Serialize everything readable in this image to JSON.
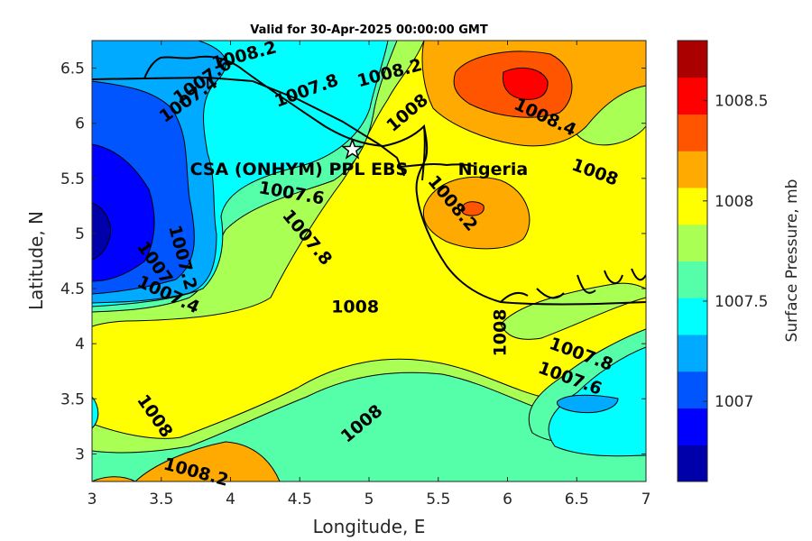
{
  "chart_data": {
    "type": "contour",
    "title": "Valid for 30-Apr-2025 00:00:00 GMT",
    "xlabel": "Longitude, E",
    "ylabel": "Latitude, N",
    "xlim": [
      3,
      7
    ],
    "ylim": [
      2.75,
      6.75
    ],
    "x_ticks": [
      "3",
      "3.5",
      "4",
      "4.5",
      "5",
      "5.5",
      "6",
      "6.5",
      "7"
    ],
    "y_ticks": [
      "3",
      "3.5",
      "4",
      "4.5",
      "5",
      "5.5",
      "6",
      "6.5"
    ],
    "colorbar": {
      "label": "Surface Pressure, mb",
      "range": [
        1006.6,
        1008.8
      ],
      "ticks": [
        "1007",
        "1007.5",
        "1008",
        "1008.5"
      ],
      "colors": [
        "#0000aa",
        "#0000ff",
        "#0055ff",
        "#00aaff",
        "#00ffff",
        "#55ffaa",
        "#aaff55",
        "#ffff00",
        "#ffaa00",
        "#ff5500",
        "#ff0000",
        "#aa0000"
      ]
    },
    "site": {
      "name": "CSA (ONHYM) PPL EBS",
      "lon": 4.88,
      "lat": 5.76
    },
    "country_label": "Nigeria",
    "contour_labels": [
      {
        "text": "1008.2",
        "lon": 4.1,
        "lat": 6.61,
        "angle": 15
      },
      {
        "text": "1007.6",
        "lon": 3.8,
        "lat": 6.38,
        "angle": 35
      },
      {
        "text": "1007.4",
        "lon": 3.7,
        "lat": 6.21,
        "angle": 35
      },
      {
        "text": "1007.8",
        "lon": 4.55,
        "lat": 6.29,
        "angle": 20
      },
      {
        "text": "1008.2",
        "lon": 5.15,
        "lat": 6.45,
        "angle": 15
      },
      {
        "text": "1008",
        "lon": 5.28,
        "lat": 6.09,
        "angle": 40
      },
      {
        "text": "1008.4",
        "lon": 6.27,
        "lat": 6.05,
        "angle": -25
      },
      {
        "text": "1008",
        "lon": 6.63,
        "lat": 5.55,
        "angle": -20
      },
      {
        "text": "1008.2",
        "lon": 5.6,
        "lat": 5.27,
        "angle": -50
      },
      {
        "text": "1007.6",
        "lon": 4.44,
        "lat": 5.36,
        "angle": -10
      },
      {
        "text": "1007.8",
        "lon": 4.55,
        "lat": 4.96,
        "angle": -50
      },
      {
        "text": "1007",
        "lon": 3.45,
        "lat": 4.73,
        "angle": -55
      },
      {
        "text": "1007.2",
        "lon": 3.65,
        "lat": 4.78,
        "angle": -75
      },
      {
        "text": "1007.4",
        "lon": 3.55,
        "lat": 4.44,
        "angle": -25
      },
      {
        "text": "1008",
        "lon": 4.9,
        "lat": 4.33,
        "angle": 0
      },
      {
        "text": "1008",
        "lon": 5.95,
        "lat": 4.1,
        "angle": 90
      },
      {
        "text": "1007.8",
        "lon": 6.53,
        "lat": 3.9,
        "angle": -20
      },
      {
        "text": "1007.6",
        "lon": 6.45,
        "lat": 3.68,
        "angle": -20
      },
      {
        "text": "1008",
        "lon": 3.45,
        "lat": 3.34,
        "angle": -55
      },
      {
        "text": "1008",
        "lon": 4.95,
        "lat": 3.27,
        "angle": 40
      },
      {
        "text": "1008.2",
        "lon": 3.75,
        "lat": 2.83,
        "angle": -15
      }
    ]
  }
}
